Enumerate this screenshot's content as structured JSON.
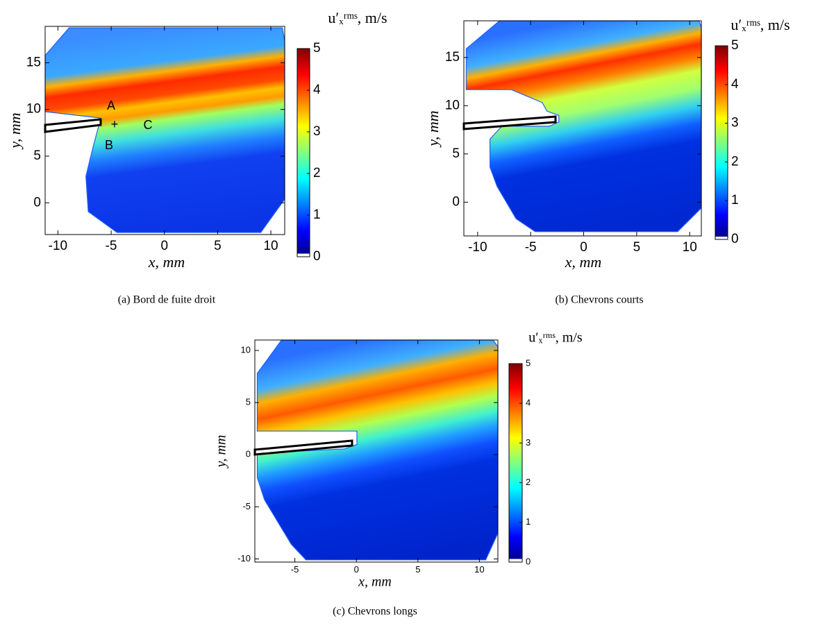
{
  "chart_data": [
    {
      "type": "heatmap",
      "caption": "(a) Bord de fuite droit",
      "xlabel": "x, mm",
      "ylabel": "y, mm",
      "colorbar_label": "u′ₓʳᵐˢ, m/s",
      "xlim": [
        -11.2,
        11.3
      ],
      "xticks": [
        -10,
        -5,
        0,
        5,
        10
      ],
      "ylim": [
        -3.4,
        18.9
      ],
      "yticks": [
        0,
        5,
        10,
        15
      ],
      "clim": [
        0,
        5
      ],
      "cticks": [
        0,
        1,
        2,
        3,
        4,
        5
      ],
      "annotations": [
        "A",
        "B",
        "C",
        "+"
      ]
    },
    {
      "type": "heatmap",
      "caption": "(b) Chevrons courts",
      "xlabel": "x, mm",
      "ylabel": "y, mm",
      "colorbar_label": "u′ₓʳᵐˢ, m/s",
      "xlim": [
        -11.3,
        11.1
      ],
      "xticks": [
        -10,
        -5,
        0,
        5,
        10
      ],
      "ylim": [
        -3.5,
        18.8
      ],
      "yticks": [
        0,
        5,
        10,
        15
      ],
      "clim": [
        0,
        5
      ],
      "cticks": [
        0,
        1,
        2,
        3,
        4,
        5
      ]
    },
    {
      "type": "heatmap",
      "caption": "(c) Chevrons longs",
      "xlabel": "x, mm",
      "ylabel": "y, mm",
      "colorbar_label": "u′ₓʳᵐˢ, m/s",
      "xlim": [
        -8.25,
        11.5
      ],
      "xticks": [
        -5,
        0,
        5,
        10
      ],
      "ylim": [
        -10.3,
        11.0
      ],
      "yticks": [
        -10,
        -5,
        0,
        5,
        10
      ],
      "clim": [
        0,
        5
      ],
      "cticks": [
        0,
        1,
        2,
        3,
        4,
        5
      ]
    }
  ]
}
